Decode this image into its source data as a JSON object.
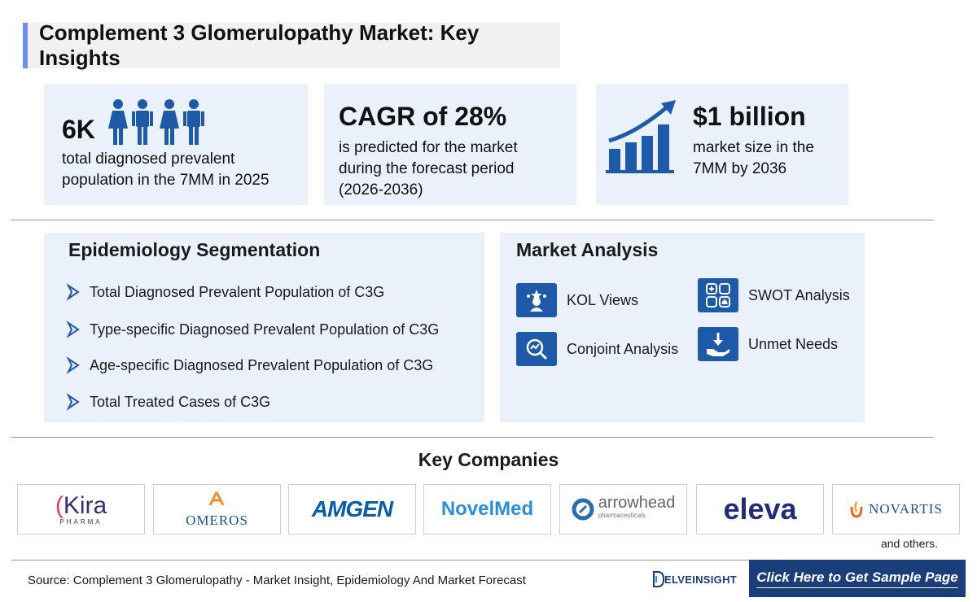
{
  "title": "Complement 3 Glomerulopathy Market: Key Insights",
  "stats": [
    {
      "value": "6K",
      "lines": [
        "total diagnosed prevalent",
        "population in the 7MM in 2025"
      ],
      "icon": "people-icon"
    },
    {
      "value": "CAGR of 28%",
      "lines": [
        "is predicted for the market",
        "during the forecast period",
        "(2026-2036)"
      ]
    },
    {
      "value": "$1 billion",
      "lines": [
        "market size in the",
        "7MM by 2036"
      ],
      "icon": "growth-chart-icon"
    }
  ],
  "epidemiology": {
    "title": "Epidemiology Segmentation",
    "items": [
      "Total Diagnosed Prevalent Population of C3G",
      "Type-specific Diagnosed Prevalent Population of C3G",
      "Age-specific Diagnosed Prevalent Population of C3G",
      "Total Treated Cases of C3G"
    ]
  },
  "market_analysis": {
    "title": "Market Analysis",
    "items": [
      {
        "label": "KOL Views",
        "icon": "kol-icon"
      },
      {
        "label": "SWOT Analysis",
        "icon": "swot-icon"
      },
      {
        "label": "Conjoint Analysis",
        "icon": "conjoint-icon"
      },
      {
        "label": "Unmet Needs",
        "icon": "unmet-needs-icon"
      }
    ]
  },
  "companies": {
    "title": "Key Companies",
    "logos": [
      {
        "name": "Kira",
        "sub": "PHARMA"
      },
      {
        "name": "OMEROS"
      },
      {
        "name": "AMGEN"
      },
      {
        "name": "NovelMed"
      },
      {
        "name": "arrowhead",
        "sub": "pharmaceuticals"
      },
      {
        "name": "eleva"
      },
      {
        "name": "NOVARTIS"
      }
    ],
    "others": "and others."
  },
  "footer": {
    "source": "Source: Complement 3 Glomerulopathy - Market Insight, Epidemiology And Market Forecast",
    "brand": "ELVEINSIGHT",
    "cta": "Click Here to Get Sample Page"
  },
  "colors": {
    "accent": "#1e5aa8",
    "card_bg": "#eaf1fb",
    "footer_bg": "#1b3d7a"
  }
}
